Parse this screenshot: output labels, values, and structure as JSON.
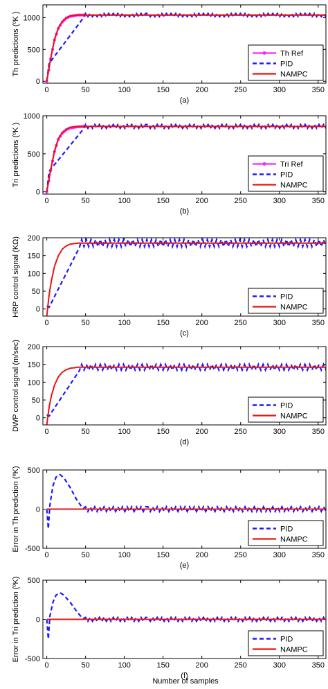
{
  "colors": {
    "ref": "#ff22ff",
    "pid": "#1a1aff",
    "nampc": "#ee1111",
    "axis": "#000000"
  },
  "xlabel_bottom": "Number of samples",
  "chart_data": [
    {
      "id": "a",
      "type": "line",
      "caption": "(a)",
      "ylabel": "Th predictions (ºK )",
      "xlim": [
        -5,
        360
      ],
      "ylim": [
        -30,
        1200
      ],
      "xticks": [
        0,
        50,
        100,
        150,
        200,
        250,
        300,
        350
      ],
      "yticks": [
        0,
        500,
        1000
      ],
      "legend_position": "bottom-right",
      "series": [
        {
          "name": "Th Ref",
          "kind": "ref",
          "x": [
            0,
            5,
            10,
            15,
            20,
            25,
            30,
            40,
            50,
            360
          ],
          "y": [
            0,
            350,
            650,
            830,
            930,
            990,
            1020,
            1040,
            1040,
            1040
          ],
          "marker": true
        },
        {
          "name": "PID",
          "kind": "pid",
          "x": [
            0,
            3,
            50,
            360
          ],
          "y": [
            0,
            280,
            1040,
            1040
          ],
          "oscillation": 25
        },
        {
          "name": "NAMPC",
          "kind": "nampc",
          "x": [
            0,
            5,
            10,
            15,
            20,
            25,
            30,
            40,
            50,
            360
          ],
          "y": [
            0,
            360,
            660,
            840,
            940,
            995,
            1025,
            1040,
            1040,
            1040
          ]
        }
      ]
    },
    {
      "id": "b",
      "type": "line",
      "caption": "(b)",
      "ylabel": "Tri predictions (ºK )",
      "xlim": [
        -5,
        360
      ],
      "ylim": [
        -30,
        1000
      ],
      "xticks": [
        0,
        50,
        100,
        150,
        200,
        250,
        300,
        350
      ],
      "yticks": [
        0,
        500,
        1000
      ],
      "legend_position": "bottom-right",
      "series": [
        {
          "name": "Tri Ref",
          "kind": "ref",
          "x": [
            0,
            5,
            10,
            15,
            20,
            25,
            30,
            40,
            50,
            360
          ],
          "y": [
            0,
            280,
            530,
            690,
            770,
            815,
            840,
            855,
            860,
            860
          ],
          "marker": true
        },
        {
          "name": "PID",
          "kind": "pid",
          "x": [
            0,
            3,
            50,
            360
          ],
          "y": [
            0,
            270,
            860,
            860
          ],
          "oscillation": 25
        },
        {
          "name": "NAMPC",
          "kind": "nampc",
          "x": [
            0,
            5,
            10,
            15,
            20,
            25,
            30,
            40,
            50,
            360
          ],
          "y": [
            0,
            290,
            540,
            700,
            780,
            820,
            845,
            858,
            860,
            860
          ]
        }
      ]
    },
    {
      "id": "c",
      "type": "line",
      "caption": "(c)",
      "ylabel": "HRP control signal (KΩ)",
      "xlim": [
        -5,
        360
      ],
      "ylim": [
        -20,
        200
      ],
      "xticks": [
        0,
        50,
        100,
        150,
        200,
        250,
        300,
        350
      ],
      "yticks": [
        0,
        50,
        100,
        150,
        200
      ],
      "legend_position": "bottom-right",
      "series": [
        {
          "name": "PID",
          "kind": "pid",
          "x": [
            0,
            3,
            45,
            360
          ],
          "y": [
            8,
            5,
            185,
            185
          ],
          "oscillation": 10
        },
        {
          "name": "NAMPC",
          "kind": "nampc",
          "x": [
            0,
            3,
            6,
            10,
            15,
            20,
            25,
            30,
            40,
            50,
            360
          ],
          "y": [
            -20,
            40,
            80,
            120,
            150,
            168,
            177,
            182,
            185,
            185,
            185
          ]
        }
      ]
    },
    {
      "id": "d",
      "type": "line",
      "caption": "(d)",
      "ylabel": "DWP control signal (m/sec)",
      "xlim": [
        -5,
        360
      ],
      "ylim": [
        -20,
        200
      ],
      "xticks": [
        0,
        50,
        100,
        150,
        200,
        250,
        300,
        350
      ],
      "yticks": [
        0,
        50,
        100,
        150,
        200
      ],
      "legend_position": "bottom-right",
      "series": [
        {
          "name": "PID",
          "kind": "pid",
          "x": [
            0,
            3,
            45,
            360
          ],
          "y": [
            8,
            5,
            142,
            142
          ],
          "oscillation": 8
        },
        {
          "name": "NAMPC",
          "kind": "nampc",
          "x": [
            0,
            3,
            6,
            10,
            15,
            20,
            25,
            30,
            40,
            50,
            360
          ],
          "y": [
            -20,
            30,
            62,
            92,
            115,
            128,
            135,
            139,
            142,
            142,
            142
          ]
        }
      ]
    },
    {
      "id": "e",
      "type": "line",
      "caption": "(e)",
      "ylabel": "Error in Th prediction (ºK)",
      "xlim": [
        -5,
        360
      ],
      "ylim": [
        -500,
        500
      ],
      "xticks": [
        0,
        50,
        100,
        150,
        200,
        250,
        300,
        350
      ],
      "yticks": [
        -500,
        0,
        500
      ],
      "legend_position": "bottom-right",
      "series": [
        {
          "name": "PID",
          "kind": "pid",
          "x": [
            0,
            2,
            4,
            8,
            12,
            17,
            22,
            30,
            38,
            45,
            50,
            360
          ],
          "y": [
            0,
            -250,
            50,
            300,
            410,
            440,
            400,
            280,
            130,
            30,
            0,
            0
          ],
          "oscillation": 30
        },
        {
          "name": "NAMPC",
          "kind": "nampc",
          "x": [
            0,
            360
          ],
          "y": [
            0,
            0
          ]
        }
      ]
    },
    {
      "id": "f",
      "type": "line",
      "caption": "(f)",
      "ylabel": "Error in Tri prediction (ºK)",
      "xlim": [
        -5,
        360
      ],
      "ylim": [
        -500,
        500
      ],
      "xticks": [
        0,
        50,
        100,
        150,
        200,
        250,
        300,
        350
      ],
      "yticks": [
        -500,
        0,
        500
      ],
      "legend_position": "bottom-right",
      "series": [
        {
          "name": "PID",
          "kind": "pid",
          "x": [
            0,
            2,
            4,
            8,
            12,
            17,
            22,
            30,
            38,
            45,
            50,
            360
          ],
          "y": [
            0,
            -250,
            40,
            220,
            310,
            340,
            310,
            220,
            110,
            25,
            0,
            0
          ],
          "oscillation": 25
        },
        {
          "name": "NAMPC",
          "kind": "nampc",
          "x": [
            0,
            360
          ],
          "y": [
            0,
            0
          ]
        }
      ]
    }
  ]
}
